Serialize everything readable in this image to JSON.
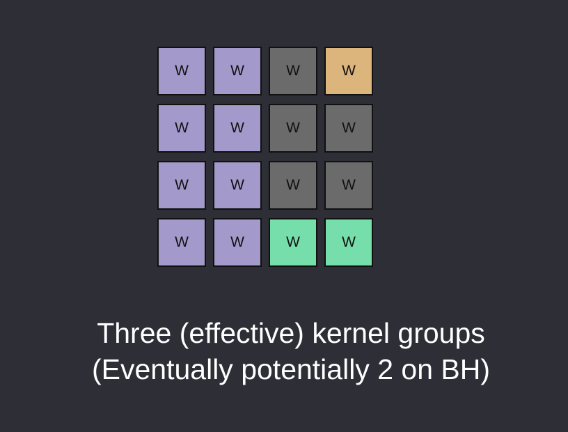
{
  "colors": {
    "background": "#2d2e36",
    "purple": "#a499cb",
    "gray": "#6b6b6b",
    "orange": "#dbb57c",
    "green": "#76deaa",
    "border": "#111111",
    "caption_text": "#ffffff"
  },
  "grid": {
    "rows": [
      [
        {
          "label": "W",
          "color": "purple"
        },
        {
          "label": "W",
          "color": "purple"
        },
        {
          "label": "W",
          "color": "gray"
        },
        {
          "label": "W",
          "color": "orange"
        }
      ],
      [
        {
          "label": "W",
          "color": "purple"
        },
        {
          "label": "W",
          "color": "purple"
        },
        {
          "label": "W",
          "color": "gray"
        },
        {
          "label": "W",
          "color": "gray"
        }
      ],
      [
        {
          "label": "W",
          "color": "purple"
        },
        {
          "label": "W",
          "color": "purple"
        },
        {
          "label": "W",
          "color": "gray"
        },
        {
          "label": "W",
          "color": "gray"
        }
      ],
      [
        {
          "label": "W",
          "color": "purple"
        },
        {
          "label": "W",
          "color": "purple"
        },
        {
          "label": "W",
          "color": "green"
        },
        {
          "label": "W",
          "color": "green"
        }
      ]
    ]
  },
  "caption": {
    "line1": "Three (effective) kernel groups",
    "line2": "(Eventually potentially 2 on BH)"
  }
}
